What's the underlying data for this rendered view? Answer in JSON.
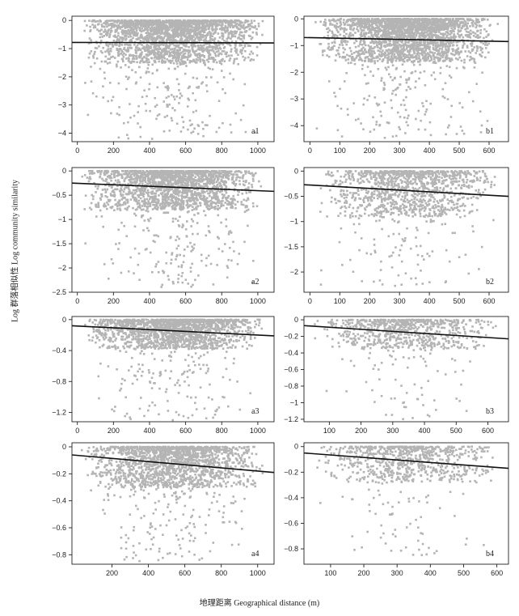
{
  "figure": {
    "ylabel": "Log 群落相似性  Log community similarity",
    "xlabel": "地理距离  Geographical distance (m)"
  },
  "chart_data": [
    {
      "type": "scatter",
      "panel": "a1",
      "ylim": [
        -4.3,
        0.15
      ],
      "xlim": [
        -30,
        1090
      ],
      "xticks": [
        0,
        200,
        400,
        600,
        800,
        1000
      ],
      "yticks": [
        0,
        -1,
        -2,
        -3,
        -4
      ],
      "fit": {
        "x": [
          -30,
          1090
        ],
        "y": [
          -0.78,
          -0.8
        ]
      },
      "density": {
        "x_range": [
          10,
          1060
        ],
        "x_peak": 450,
        "core_top": 0,
        "core_bottom": -1.5,
        "tail_bottom": -4.2,
        "n_points": 2400
      }
    },
    {
      "type": "scatter",
      "panel": "b1",
      "ylim": [
        -4.6,
        0.1
      ],
      "xlim": [
        -20,
        665
      ],
      "xticks": [
        0,
        100,
        200,
        300,
        400,
        500,
        600
      ],
      "yticks": [
        0,
        -1,
        -2,
        -3,
        -4
      ],
      "fit": {
        "x": [
          -20,
          665
        ],
        "y": [
          -0.7,
          -0.85
        ]
      },
      "density": {
        "x_range": [
          10,
          640
        ],
        "x_peak": 300,
        "core_top": 0,
        "core_bottom": -1.6,
        "tail_bottom": -4.5,
        "n_points": 2400
      }
    },
    {
      "type": "scatter",
      "panel": "a2",
      "ylim": [
        -2.5,
        0.07
      ],
      "xlim": [
        -30,
        1090
      ],
      "xticks": [
        0,
        200,
        400,
        600,
        800,
        1000
      ],
      "yticks": [
        0.0,
        -0.5,
        -1.0,
        -1.5,
        -2.0,
        -2.5
      ],
      "fit": {
        "x": [
          -30,
          1090
        ],
        "y": [
          -0.25,
          -0.42
        ]
      },
      "density": {
        "x_range": [
          10,
          1060
        ],
        "x_peak": 450,
        "core_top": 0,
        "core_bottom": -0.8,
        "tail_bottom": -2.4,
        "n_points": 2000
      }
    },
    {
      "type": "scatter",
      "panel": "b2",
      "ylim": [
        -2.4,
        0.07
      ],
      "xlim": [
        -20,
        665
      ],
      "xticks": [
        0,
        100,
        200,
        300,
        400,
        500,
        600
      ],
      "yticks": [
        0.0,
        -0.5,
        -1.0,
        -1.5,
        -2.0
      ],
      "fit": {
        "x": [
          -20,
          665
        ],
        "y": [
          -0.27,
          -0.5
        ]
      },
      "density": {
        "x_range": [
          10,
          640
        ],
        "x_peak": 300,
        "core_top": 0,
        "core_bottom": -0.9,
        "tail_bottom": -2.3,
        "n_points": 1200
      }
    },
    {
      "type": "scatter",
      "panel": "a3",
      "ylim": [
        -1.32,
        0.04
      ],
      "xlim": [
        -30,
        1090
      ],
      "xticks": [
        0,
        200,
        400,
        600,
        800,
        1000
      ],
      "yticks": [
        0.0,
        -0.4,
        -0.8,
        -1.2
      ],
      "fit": {
        "x": [
          -30,
          1090
        ],
        "y": [
          -0.08,
          -0.21
        ]
      },
      "density": {
        "x_range": [
          10,
          1060
        ],
        "x_peak": 450,
        "core_top": 0,
        "core_bottom": -0.38,
        "tail_bottom": -1.3,
        "n_points": 1800
      }
    },
    {
      "type": "scatter",
      "panel": "b3",
      "ylim": [
        -1.23,
        0.04
      ],
      "xlim": [
        20,
        665
      ],
      "xticks": [
        100,
        200,
        300,
        400,
        500,
        600
      ],
      "yticks": [
        0.0,
        -0.2,
        -0.4,
        -0.6,
        -0.8,
        -1.0,
        -1.2
      ],
      "fit": {
        "x": [
          20,
          665
        ],
        "y": [
          -0.07,
          -0.23
        ]
      },
      "density": {
        "x_range": [
          40,
          640
        ],
        "x_peak": 320,
        "core_top": 0,
        "core_bottom": -0.35,
        "tail_bottom": -1.2,
        "n_points": 800
      }
    },
    {
      "type": "scatter",
      "panel": "a4",
      "ylim": [
        -0.87,
        0.03
      ],
      "xlim": [
        -20,
        1090
      ],
      "xticks": [
        200,
        400,
        600,
        800,
        1000
      ],
      "yticks": [
        0.0,
        -0.2,
        -0.4,
        -0.6,
        -0.8
      ],
      "fit": {
        "x": [
          -20,
          1090
        ],
        "y": [
          -0.06,
          -0.19
        ]
      },
      "density": {
        "x_range": [
          20,
          1060
        ],
        "x_peak": 450,
        "core_top": 0,
        "core_bottom": -0.3,
        "tail_bottom": -0.85,
        "n_points": 1800
      }
    },
    {
      "type": "scatter",
      "panel": "b4",
      "ylim": [
        -0.92,
        0.03
      ],
      "xlim": [
        20,
        635
      ],
      "xticks": [
        100,
        200,
        300,
        400,
        500,
        600
      ],
      "yticks": [
        0.0,
        -0.2,
        -0.4,
        -0.6,
        -0.8
      ],
      "fit": {
        "x": [
          20,
          635
        ],
        "y": [
          -0.05,
          -0.17
        ]
      },
      "density": {
        "x_range": [
          40,
          620
        ],
        "x_peak": 320,
        "core_top": 0,
        "core_bottom": -0.28,
        "tail_bottom": -0.88,
        "n_points": 800
      }
    }
  ],
  "colors": {
    "points": "#b4b4b4",
    "fit": "#111111",
    "axis": "#222222",
    "background": "#ffffff"
  }
}
